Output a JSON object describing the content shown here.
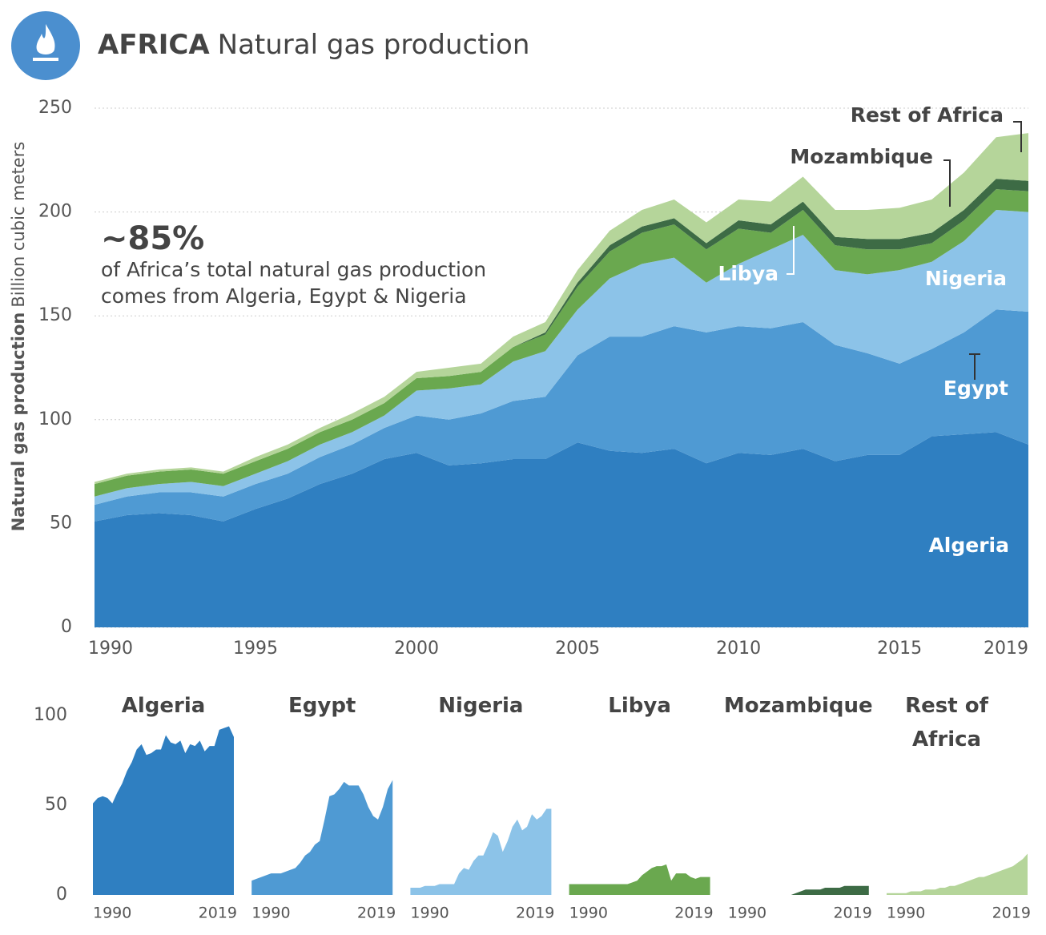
{
  "chart_data": [
    {
      "type": "stacked-area",
      "title_bold": "AFRICA",
      "title": "Natural gas production",
      "y_label_bold": "Natural gas production",
      "y_label": "Billion cubic meters",
      "annotation_big": "~85%",
      "annotation_lines": [
        "of Africa’s total natural gas production",
        "comes from Algeria, Egypt & Nigeria"
      ],
      "x": [
        1990,
        1991,
        1992,
        1993,
        1994,
        1995,
        1996,
        1997,
        1998,
        1999,
        2000,
        2001,
        2002,
        2003,
        2004,
        2005,
        2006,
        2007,
        2008,
        2009,
        2010,
        2011,
        2012,
        2013,
        2014,
        2015,
        2016,
        2017,
        2018,
        2019
      ],
      "xlim": [
        1990,
        2019
      ],
      "xticks": [
        1990,
        1995,
        2000,
        2005,
        2010,
        2015,
        2019
      ],
      "ylim": [
        0,
        250
      ],
      "yticks": [
        0,
        50,
        100,
        150,
        200,
        250
      ],
      "grid": true,
      "series": [
        {
          "name": "Algeria",
          "color": "#2f7fc1",
          "values": [
            51,
            54,
            55,
            54,
            51,
            57,
            62,
            69,
            74,
            81,
            84,
            78,
            79,
            81,
            81,
            89,
            85,
            84,
            86,
            79,
            84,
            83,
            86,
            80,
            83,
            83,
            92,
            93,
            94,
            88
          ]
        },
        {
          "name": "Egypt",
          "color": "#4f9ad3",
          "values": [
            8,
            9,
            10,
            11,
            12,
            12,
            12,
            13,
            14,
            15,
            18,
            22,
            24,
            28,
            30,
            42,
            55,
            56,
            59,
            63,
            61,
            61,
            61,
            56,
            49,
            44,
            42,
            49,
            59,
            64
          ]
        },
        {
          "name": "Nigeria",
          "color": "#8cc3e8",
          "values": [
            4,
            4,
            4,
            5,
            5,
            5,
            6,
            6,
            6,
            6,
            12,
            15,
            14,
            19,
            22,
            22,
            28,
            35,
            33,
            24,
            30,
            38,
            42,
            36,
            38,
            45,
            42,
            44,
            48,
            48
          ]
        },
        {
          "name": "Libya",
          "color": "#6aa84f",
          "values": [
            6,
            6,
            6,
            6,
            6,
            6,
            6,
            6,
            6,
            6,
            6,
            6,
            6,
            7,
            8,
            11,
            13,
            15,
            16,
            16,
            17,
            8,
            12,
            12,
            12,
            10,
            9,
            10,
            10,
            10
          ]
        },
        {
          "name": "Mozambique",
          "color": "#3d6b45",
          "values": [
            0,
            0,
            0,
            0,
            0,
            0,
            0,
            0,
            0,
            0,
            0,
            0,
            0,
            0,
            1,
            2,
            3,
            3,
            3,
            3,
            4,
            4,
            4,
            4,
            5,
            5,
            5,
            5,
            5,
            5
          ]
        },
        {
          "name": "Rest of Africa",
          "color": "#b5d59a",
          "values": [
            1,
            1,
            1,
            1,
            1,
            2,
            2,
            2,
            3,
            3,
            3,
            4,
            4,
            5,
            5,
            6,
            7,
            8,
            9,
            10,
            10,
            11,
            12,
            13,
            14,
            15,
            16,
            18,
            20,
            23
          ]
        }
      ]
    },
    {
      "type": "small-multiples",
      "ylim": [
        0,
        100
      ],
      "yticks": [
        0,
        50,
        100
      ],
      "xticks": [
        1990,
        2019
      ]
    }
  ]
}
